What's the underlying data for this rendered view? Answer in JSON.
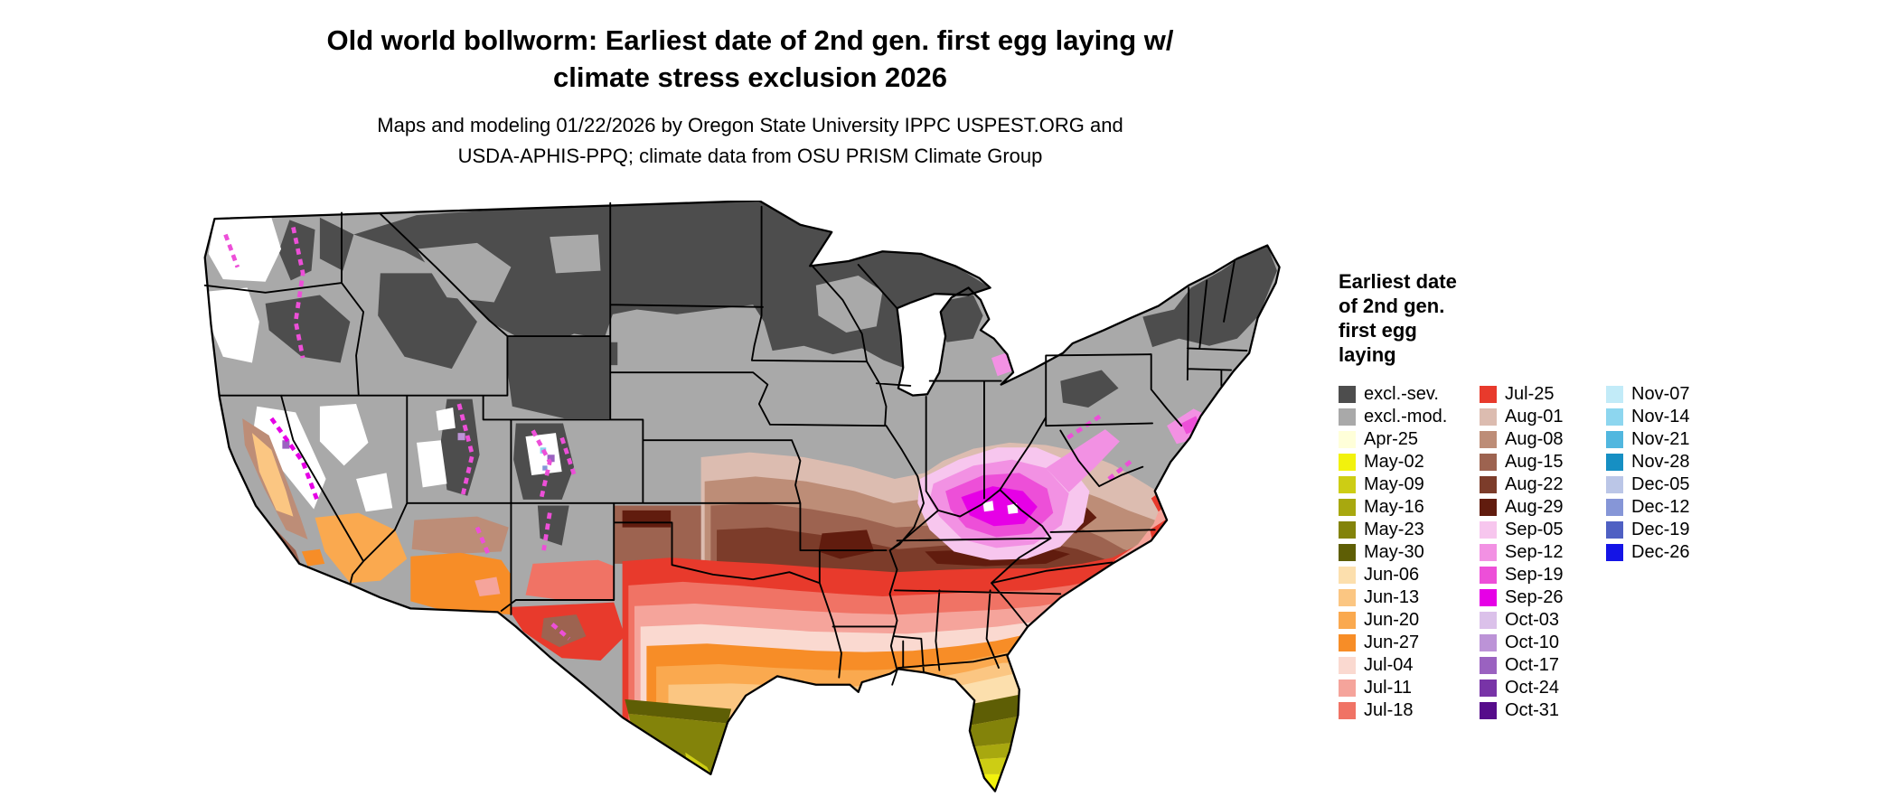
{
  "title": {
    "line1": "Old world bollworm: Earliest date of 2nd gen. first egg laying w/",
    "line2": "climate stress exclusion 2026"
  },
  "subtitle": {
    "line1": "Maps and modeling 01/22/2026 by Oregon State University IPPC USPEST.ORG and",
    "line2": "USDA-APHIS-PPQ; climate data from OSU PRISM Climate Group"
  },
  "legend": {
    "title_lines": [
      "Earliest date",
      "of 2nd gen.",
      "first egg",
      "laying"
    ],
    "columns": [
      {
        "entries": [
          {
            "label": "excl.-sev.",
            "color": "#4d4d4d"
          },
          {
            "label": "excl.-mod.",
            "color": "#a9a9a9"
          },
          {
            "label": "Apr-25",
            "color": "#ffffd9"
          },
          {
            "label": "May-02",
            "color": "#f2f20d"
          },
          {
            "label": "May-09",
            "color": "#cdcd14"
          },
          {
            "label": "May-16",
            "color": "#a8a80f"
          },
          {
            "label": "May-23",
            "color": "#83830a"
          },
          {
            "label": "May-30",
            "color": "#5e5e05"
          },
          {
            "label": "Jun-06",
            "color": "#fcdfad"
          },
          {
            "label": "Jun-13",
            "color": "#fbc682"
          },
          {
            "label": "Jun-20",
            "color": "#faa94f"
          },
          {
            "label": "Jun-27",
            "color": "#f78d27"
          },
          {
            "label": "Jul-04",
            "color": "#fad9d0"
          },
          {
            "label": "Jul-11",
            "color": "#f5a49b"
          },
          {
            "label": "Jul-18",
            "color": "#f07365"
          }
        ]
      },
      {
        "entries": [
          {
            "label": "Jul-25",
            "color": "#e83a2c"
          },
          {
            "label": "Aug-01",
            "color": "#dcbcb0"
          },
          {
            "label": "Aug-08",
            "color": "#bd8d77"
          },
          {
            "label": "Aug-15",
            "color": "#9d6350"
          },
          {
            "label": "Aug-22",
            "color": "#7c3c2a"
          },
          {
            "label": "Aug-29",
            "color": "#611c0e"
          },
          {
            "label": "Sep-05",
            "color": "#f7c6ee"
          },
          {
            "label": "Sep-12",
            "color": "#f291e3"
          },
          {
            "label": "Sep-19",
            "color": "#ed4fd8"
          },
          {
            "label": "Sep-26",
            "color": "#e600e6"
          },
          {
            "label": "Oct-03",
            "color": "#dbc1ea"
          },
          {
            "label": "Oct-10",
            "color": "#bc93d7"
          },
          {
            "label": "Oct-17",
            "color": "#9a62c0"
          },
          {
            "label": "Oct-24",
            "color": "#7834a7"
          },
          {
            "label": "Oct-31",
            "color": "#560c8b"
          }
        ]
      },
      {
        "entries": [
          {
            "label": "Nov-07",
            "color": "#c2ebf8"
          },
          {
            "label": "Nov-14",
            "color": "#8dd6ef"
          },
          {
            "label": "Nov-21",
            "color": "#51b7df"
          },
          {
            "label": "Nov-28",
            "color": "#168fc3"
          },
          {
            "label": "Dec-05",
            "color": "#bbc6e7"
          },
          {
            "label": "Dec-12",
            "color": "#8696d7"
          },
          {
            "label": "Dec-19",
            "color": "#4f60c3"
          },
          {
            "label": "Dec-26",
            "color": "#1414e6"
          }
        ]
      }
    ]
  },
  "map": {
    "background": "#ffffff",
    "outline_color": "#000000",
    "state_border_color": "#000000"
  }
}
